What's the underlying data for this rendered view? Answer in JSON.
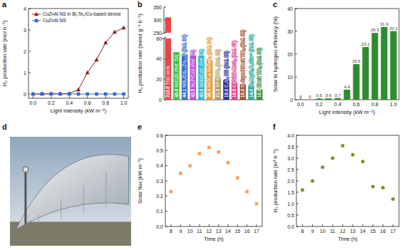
{
  "chart_data": [
    {
      "type": "line",
      "title": "a",
      "x": [
        0,
        0.1,
        0.2,
        0.3,
        0.4,
        0.5,
        0.6,
        0.7,
        0.8,
        0.9,
        1
      ],
      "xlim": [
        -0.05,
        1.05
      ],
      "xticks": [
        {
          "value": 0,
          "label": "0.0"
        },
        0.2,
        0.4,
        0.6,
        0.8,
        {
          "value": 1,
          "label": "1.0"
        }
      ],
      "ylim": [
        -0.2,
        4
      ],
      "yticks": [
        0,
        1,
        2,
        3,
        4
      ],
      "x_label": "Light intensity (kW m⁻²)",
      "y_label": "H₂ production rate (mol h⁻¹)",
      "legend": "upper left",
      "series": [
        {
          "name": "CuZnAl NS in Bi₂Te₃/Cu-based device",
          "color": "#8b1a1a",
          "marker": "triangle",
          "values": [
            0,
            0.01,
            0.02,
            0.02,
            0.03,
            0.2,
            1.0,
            1.6,
            2.4,
            2.9,
            3.1
          ]
        },
        {
          "name": "CuZnAl NS",
          "color": "#3366cc",
          "marker": "square",
          "values": [
            0,
            0,
            0,
            0,
            0,
            0,
            0,
            0,
            0,
            0,
            0
          ]
        }
      ]
    },
    {
      "type": "bar",
      "title": "b",
      "categories": [
        "This work",
        "Ni/CdS (Ref. 59)",
        "NiS₂/Cd₀.₅Zn₀.₅S (Ref. 34)",
        "Ni₂P/CdS (Ref. 35)",
        "Ni(II)/CdS (Ref. 63)",
        "NiO/La-NaTaO₃ (Ref. 64)",
        "BP/BiVO₄ (Ref. 65)",
        "C₃N₄ NS (Ref. 66)",
        "CdS/2H-MoS₂ (Ref. 67)",
        "N-doped black TiO₂ (Ref. 68)",
        "Sr₃MgSi₂O₈:Eu²⁺ (Ref. 69)",
        "Black TiO₂ (Ref. 36)"
      ],
      "values": [
        310.0,
        46.6,
        44.1,
        43.5,
        43.0,
        38.4,
        21.0,
        19.0,
        16.6,
        15.0,
        14.0,
        10.0
      ],
      "value_labels": [
        "310.0",
        "46.6",
        "44.1",
        "43.5",
        "43.0",
        "38.4",
        "21.0",
        "19.0",
        "16.6",
        "15.0",
        "14.0",
        "10.0"
      ],
      "colors": [
        "#e84545",
        "#3fbf3f",
        "#3a6cc8",
        "#b84bd6",
        "#1fb8d0",
        "#f0962a",
        "#b59a60",
        "#2a2a9a",
        "#e0408a",
        "#a0522d",
        "#23a89c",
        "#2f8f3a"
      ],
      "data_labels": true,
      "tick_labels": "y",
      "ylim": [
        0,
        350
      ],
      "yticks": [
        0,
        20,
        40,
        60,
        250,
        300,
        350
      ],
      "y_label": "H₂ production rate (mmol g⁻¹ h⁻¹)"
    },
    {
      "type": "bar",
      "title": "c",
      "x": [
        0,
        0.1,
        0.2,
        0.3,
        0.4,
        0.5,
        0.6,
        0.7,
        0.8,
        0.9,
        1
      ],
      "values": [
        0,
        0,
        0.5,
        0.6,
        0.7,
        4.4,
        15.6,
        23.1,
        29.3,
        31.9,
        30.1
      ],
      "color": "#2e8b2e",
      "data_labels": true,
      "xlim": [
        -0.06,
        1.06
      ],
      "xticks": [
        {
          "value": 0,
          "label": "0.0"
        },
        0.2,
        0.4,
        0.6,
        0.8,
        {
          "value": 1,
          "label": "1.0"
        }
      ],
      "ylim": [
        0,
        40
      ],
      "yticks": [
        0,
        10,
        20,
        30,
        40
      ],
      "x_label": "Light intensity (kW m⁻²)",
      "y_label": "Solar to hydrogen efficiency (%)"
    },
    {
      "type": "image",
      "title": "d"
    },
    {
      "type": "scatter",
      "title": "e",
      "x": [
        8,
        9,
        10,
        11,
        12,
        13,
        14,
        15,
        16,
        17
      ],
      "values": [
        0.23,
        0.35,
        0.4,
        0.48,
        0.52,
        0.49,
        0.42,
        0.32,
        0.23,
        0.15
      ],
      "color": "#f4a460",
      "marker": "square",
      "xlim": [
        7.4,
        17.6
      ],
      "xticks": [
        8,
        9,
        10,
        11,
        12,
        13,
        14,
        15,
        16,
        17
      ],
      "ylim": [
        0,
        0.6
      ],
      "yticks": [
        {
          "value": 0,
          "label": "0.0"
        },
        0.1,
        0.2,
        0.3,
        0.4,
        0.5,
        0.6
      ],
      "x_label": "Time (h)",
      "y_label": "Solar flux (kW m⁻²)"
    },
    {
      "type": "scatter",
      "title": "f",
      "x": [
        8,
        9,
        10,
        11,
        12,
        13,
        14,
        15,
        16,
        17
      ],
      "values": [
        1.6,
        2.0,
        2.6,
        3.0,
        3.55,
        3.15,
        2.85,
        1.75,
        1.7,
        1.2
      ],
      "color": "#8b8b1a",
      "marker": "circle",
      "xlim": [
        7.4,
        17.6
      ],
      "xticks": [
        8,
        9,
        10,
        11,
        12,
        13,
        14,
        15,
        16,
        17
      ],
      "ylim": [
        0,
        4
      ],
      "yticks": [
        {
          "value": 0,
          "label": "0.0"
        },
        0.5,
        {
          "value": 1,
          "label": "1.0"
        },
        1.5,
        {
          "value": 2,
          "label": "2.0"
        },
        2.5,
        {
          "value": 3,
          "label": "3.0"
        },
        3.5,
        {
          "value": 4,
          "label": "4.0"
        }
      ],
      "x_label": "Time (h)",
      "y_label": "H₂ production rate (m³ h⁻¹)"
    }
  ]
}
